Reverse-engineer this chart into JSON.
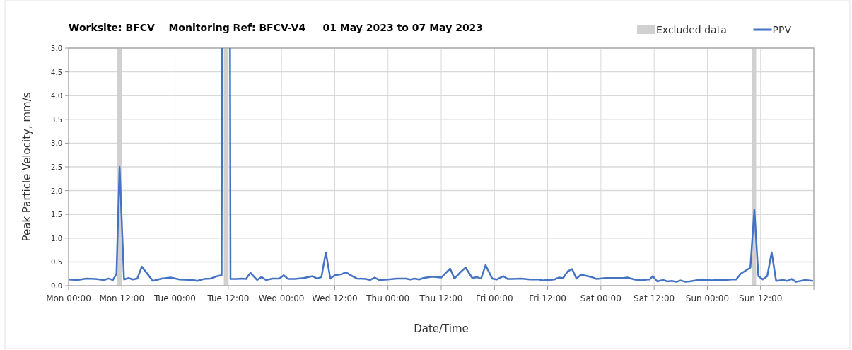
{
  "chart_data": {
    "type": "line",
    "title": "Worksite: BFCV    Monitoring Ref: BFCV-V4     01 May 2023 to 07 May 2023",
    "xlabel": "Date/Time",
    "ylabel": "Peak Particle Velocity, mm/s",
    "xlim": [
      "2023-05-01T00:00",
      "2023-05-08T00:00"
    ],
    "ylim": [
      0,
      5
    ],
    "xticks": [
      {
        "value": "2023-05-01T00:00",
        "label": "Mon 00:00"
      },
      {
        "value": "2023-05-01T12:00",
        "label": "Mon 12:00"
      },
      {
        "value": "2023-05-02T00:00",
        "label": "Tue 00:00"
      },
      {
        "value": "2023-05-02T12:00",
        "label": "Tue 12:00"
      },
      {
        "value": "2023-05-03T00:00",
        "label": "Wed 00:00"
      },
      {
        "value": "2023-05-03T12:00",
        "label": "Wed 12:00"
      },
      {
        "value": "2023-05-04T00:00",
        "label": "Thu 00:00"
      },
      {
        "value": "2023-05-04T12:00",
        "label": "Thu 12:00"
      },
      {
        "value": "2023-05-05T00:00",
        "label": "Fri 00:00"
      },
      {
        "value": "2023-05-05T12:00",
        "label": "Fri 12:00"
      },
      {
        "value": "2023-05-06T00:00",
        "label": "Sat 00:00"
      },
      {
        "value": "2023-05-06T12:00",
        "label": "Sat 12:00"
      },
      {
        "value": "2023-05-07T00:00",
        "label": "Sun 00:00"
      },
      {
        "value": "2023-05-07T12:00",
        "label": "Sun 12:00"
      },
      {
        "value": "2023-05-08T00:00",
        "label": null
      }
    ],
    "yticks": [
      {
        "value": 0,
        "label": "0.0"
      },
      {
        "value": 0.5,
        "label": "0.5"
      },
      {
        "value": 1,
        "label": "1.0"
      },
      {
        "value": 1.5,
        "label": "1.5"
      },
      {
        "value": 2,
        "label": "2.0"
      },
      {
        "value": 2.5,
        "label": "2.5"
      },
      {
        "value": 3,
        "label": "3.0"
      },
      {
        "value": 3.5,
        "label": "3.5"
      },
      {
        "value": 4,
        "label": "4.0"
      },
      {
        "value": 4.5,
        "label": "4.5"
      },
      {
        "value": 5,
        "label": "5.0"
      }
    ],
    "grid": true,
    "legend": "top right",
    "marker": "none",
    "line_style": "solid",
    "bands": [
      {
        "axis": "x",
        "from": "2023-05-01T11:00",
        "to": "2023-05-01T12:00",
        "label": "Excluded data",
        "color": "#d0d0d0"
      },
      {
        "axis": "x",
        "from": "2023-05-02T11:00",
        "to": "2023-05-02T12:00",
        "color": "#d0d0d0"
      },
      {
        "axis": "x",
        "from": "2023-05-07T10:00",
        "to": "2023-05-07T11:00",
        "color": "#d0d0d0"
      }
    ],
    "series": [
      {
        "name": "PPV",
        "color": "#4472c4",
        "x": [
          "2023-05-01T00:00",
          "2023-05-01T02:00",
          "2023-05-01T04:00",
          "2023-05-01T06:00",
          "2023-05-01T08:00",
          "2023-05-01T09:00",
          "2023-05-01T10:00",
          "2023-05-01T10:48",
          "2023-05-01T11:30",
          "2023-05-01T12:30",
          "2023-05-01T13:30",
          "2023-05-01T14:30",
          "2023-05-01T15:30",
          "2023-05-01T16:30",
          "2023-05-01T19:00",
          "2023-05-01T21:00",
          "2023-05-01T23:00",
          "2023-05-02T01:00",
          "2023-05-02T04:00",
          "2023-05-02T05:00",
          "2023-05-02T06:30",
          "2023-05-02T08:00",
          "2023-05-02T09:30",
          "2023-05-02T10:30",
          "2023-05-02T10:36",
          "2023-05-02T11:30",
          "2023-05-02T12:24",
          "2023-05-02T12:30",
          "2023-05-02T14:00",
          "2023-05-02T15:00",
          "2023-05-02T16:00",
          "2023-05-02T17:00",
          "2023-05-02T18:30",
          "2023-05-02T19:30",
          "2023-05-02T20:30",
          "2023-05-02T22:00",
          "2023-05-02T23:30",
          "2023-05-03T00:30",
          "2023-05-03T01:30",
          "2023-05-03T03:00",
          "2023-05-03T05:00",
          "2023-05-03T07:00",
          "2023-05-03T08:00",
          "2023-05-03T09:00",
          "2023-05-03T10:00",
          "2023-05-03T11:00",
          "2023-05-03T12:00",
          "2023-05-03T13:30",
          "2023-05-03T14:30",
          "2023-05-03T16:00",
          "2023-05-03T17:00",
          "2023-05-03T19:00",
          "2023-05-03T20:00",
          "2023-05-03T21:00",
          "2023-05-03T22:00",
          "2023-05-04T00:00",
          "2023-05-04T02:00",
          "2023-05-04T04:00",
          "2023-05-04T05:00",
          "2023-05-04T06:00",
          "2023-05-04T07:00",
          "2023-05-04T08:00",
          "2023-05-04T10:00",
          "2023-05-04T12:00",
          "2023-05-04T14:00",
          "2023-05-04T15:00",
          "2023-05-04T16:30",
          "2023-05-04T17:30",
          "2023-05-04T19:00",
          "2023-05-04T20:00",
          "2023-05-04T21:00",
          "2023-05-04T22:00",
          "2023-05-04T23:30",
          "2023-05-05T00:30",
          "2023-05-05T02:00",
          "2023-05-05T03:00",
          "2023-05-05T04:00",
          "2023-05-05T06:00",
          "2023-05-05T08:00",
          "2023-05-05T10:00",
          "2023-05-05T11:00",
          "2023-05-05T12:00",
          "2023-05-05T13:30",
          "2023-05-05T14:30",
          "2023-05-05T15:30",
          "2023-05-05T16:30",
          "2023-05-05T17:30",
          "2023-05-05T18:30",
          "2023-05-05T19:30",
          "2023-05-05T21:00",
          "2023-05-05T22:00",
          "2023-05-05T23:00",
          "2023-05-06T01:00",
          "2023-05-06T03:00",
          "2023-05-06T05:00",
          "2023-05-06T06:00",
          "2023-05-06T07:30",
          "2023-05-06T09:00",
          "2023-05-06T10:30",
          "2023-05-06T11:00",
          "2023-05-06T11:42",
          "2023-05-06T12:42",
          "2023-05-06T14:00",
          "2023-05-06T15:00",
          "2023-05-06T16:00",
          "2023-05-06T17:00",
          "2023-05-06T18:00",
          "2023-05-06T19:00",
          "2023-05-06T20:00",
          "2023-05-06T22:00",
          "2023-05-07T00:00",
          "2023-05-07T01:00",
          "2023-05-07T02:00",
          "2023-05-07T04:00",
          "2023-05-07T05:30",
          "2023-05-07T06:30",
          "2023-05-07T07:30",
          "2023-05-07T09:42",
          "2023-05-07T10:36",
          "2023-05-07T11:30",
          "2023-05-07T12:30",
          "2023-05-07T13:30",
          "2023-05-07T14:30",
          "2023-05-07T15:30",
          "2023-05-07T17:00",
          "2023-05-07T18:00",
          "2023-05-07T19:00",
          "2023-05-07T20:00",
          "2023-05-07T22:00",
          "2023-05-07T23:48"
        ],
        "values": [
          0.13,
          0.12,
          0.15,
          0.14,
          0.12,
          0.15,
          0.12,
          0.25,
          2.5,
          0.13,
          0.16,
          0.13,
          0.15,
          0.4,
          0.1,
          0.15,
          0.17,
          0.13,
          0.12,
          0.1,
          0.14,
          0.15,
          0.2,
          0.22,
          5,
          null,
          5,
          0.14,
          0.14,
          0.15,
          0.14,
          0.27,
          0.12,
          0.18,
          0.12,
          0.15,
          0.15,
          0.22,
          0.14,
          0.14,
          0.16,
          0.2,
          0.15,
          0.18,
          0.7,
          0.15,
          0.22,
          0.24,
          0.28,
          0.2,
          0.15,
          0.14,
          0.12,
          0.17,
          0.12,
          0.13,
          0.15,
          0.15,
          0.13,
          0.15,
          0.13,
          0.16,
          0.19,
          0.17,
          0.36,
          0.15,
          0.3,
          0.38,
          0.16,
          0.18,
          0.15,
          0.43,
          0.15,
          0.13,
          0.2,
          0.14,
          0.14,
          0.15,
          0.13,
          0.13,
          0.11,
          0.12,
          0.13,
          0.17,
          0.16,
          0.3,
          0.35,
          0.15,
          0.23,
          0.2,
          0.18,
          0.14,
          0.16,
          0.16,
          0.16,
          0.17,
          0.13,
          0.11,
          0.13,
          0.13,
          0.2,
          0.09,
          0.12,
          0.09,
          0.1,
          0.08,
          0.11,
          0.08,
          0.09,
          0.12,
          0.12,
          0.11,
          0.12,
          0.12,
          0.13,
          0.13,
          0.25,
          0.38,
          1.6,
          0.2,
          0.13,
          0.2,
          0.7,
          0.1,
          0.12,
          0.1,
          0.14,
          0.08,
          0.12,
          0.1
        ]
      }
    ]
  }
}
